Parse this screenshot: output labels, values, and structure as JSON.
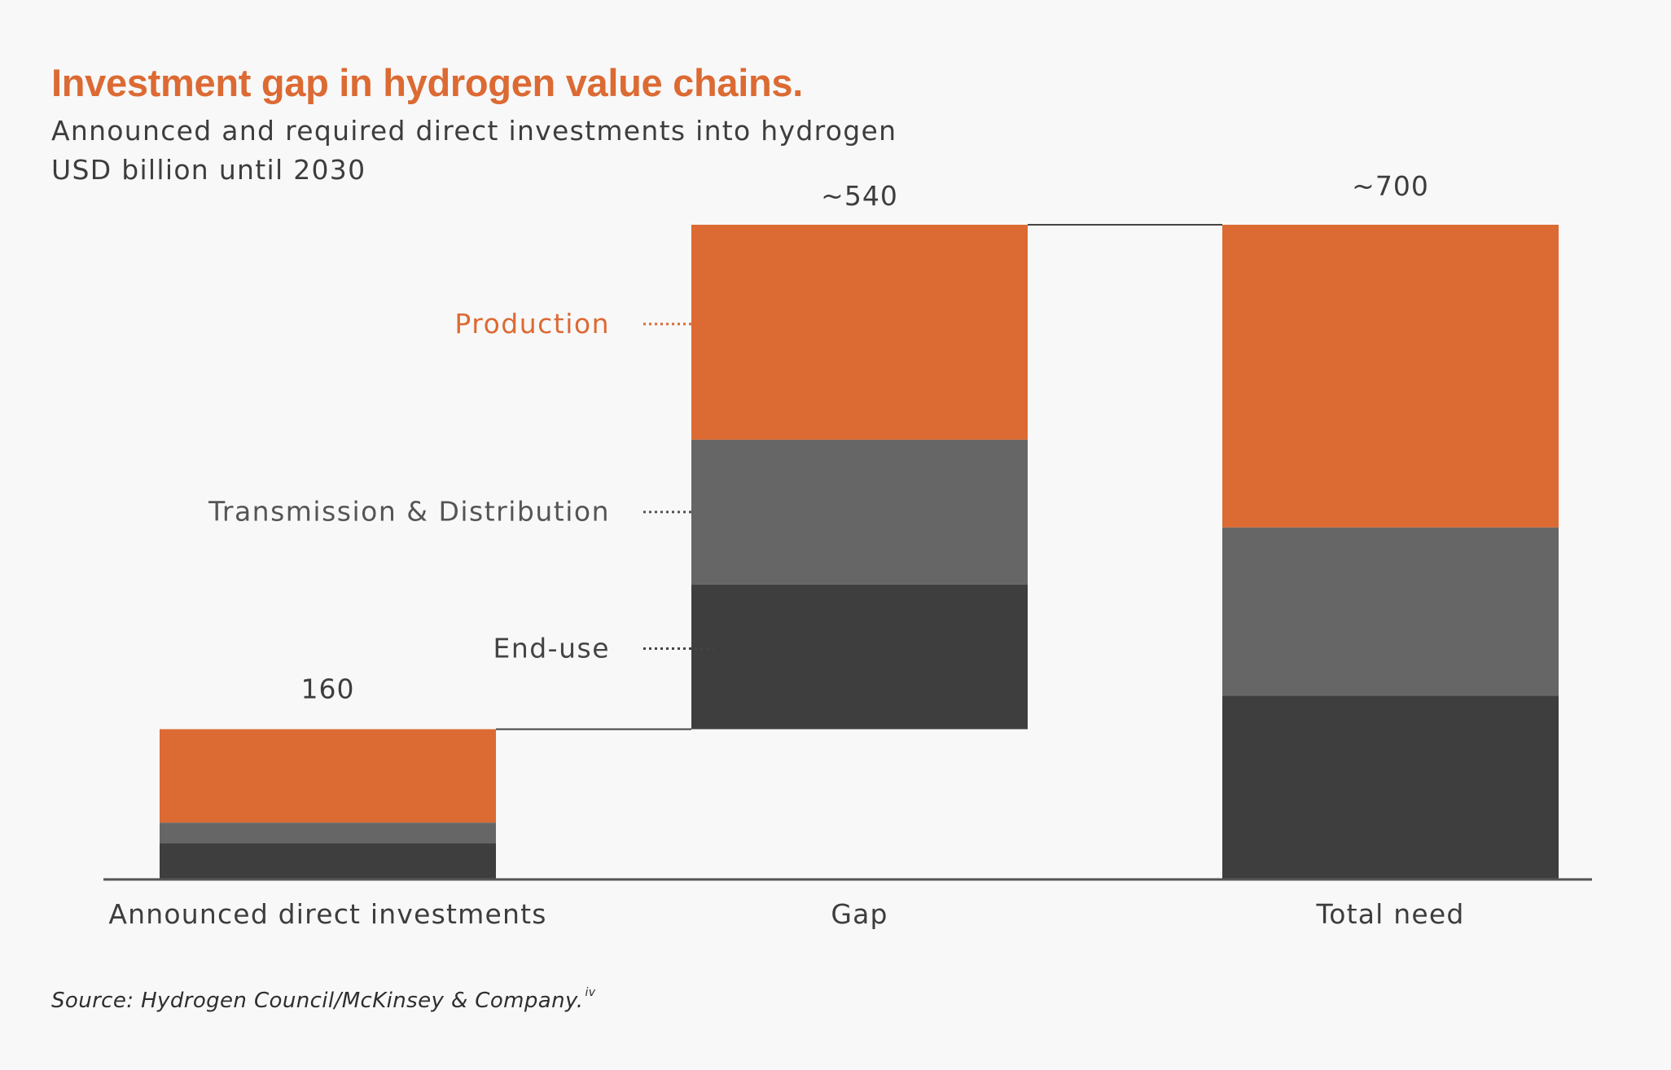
{
  "title": "Investment gap in hydrogen value chains.",
  "subtitle_line1": "Announced and required direct investments into hydrogen",
  "subtitle_line2": "USD billion until 2030",
  "source": "Source: Hydrogen Council/McKinsey & Company.",
  "source_superscript": "iv",
  "colors": {
    "production": "#dc6a33",
    "transmission_distribution": "#666666",
    "end_use": "#3e3e3e",
    "axis": "#555555",
    "text": "#3d3d3d"
  },
  "chart_data": {
    "type": "bar",
    "subtype": "waterfall-stacked",
    "categories": [
      "Announced direct investments",
      "Gap",
      "Total need"
    ],
    "total_labels": [
      "160",
      "~540",
      "~700"
    ],
    "totals": [
      160,
      540,
      700
    ],
    "series": [
      {
        "name": "End-use",
        "values": [
          38,
          155,
          196
        ]
      },
      {
        "name": "Transmission & Distribution",
        "values": [
          22,
          155,
          180
        ]
      },
      {
        "name": "Production",
        "values": [
          100,
          230,
          324
        ]
      }
    ],
    "legend_labels_order": [
      "Production",
      "Transmission & Distribution",
      "End-use"
    ],
    "legend_placement": "left of Gap bar",
    "ylim": [
      0,
      700
    ],
    "grid": false,
    "xlabel": "",
    "ylabel": ""
  }
}
